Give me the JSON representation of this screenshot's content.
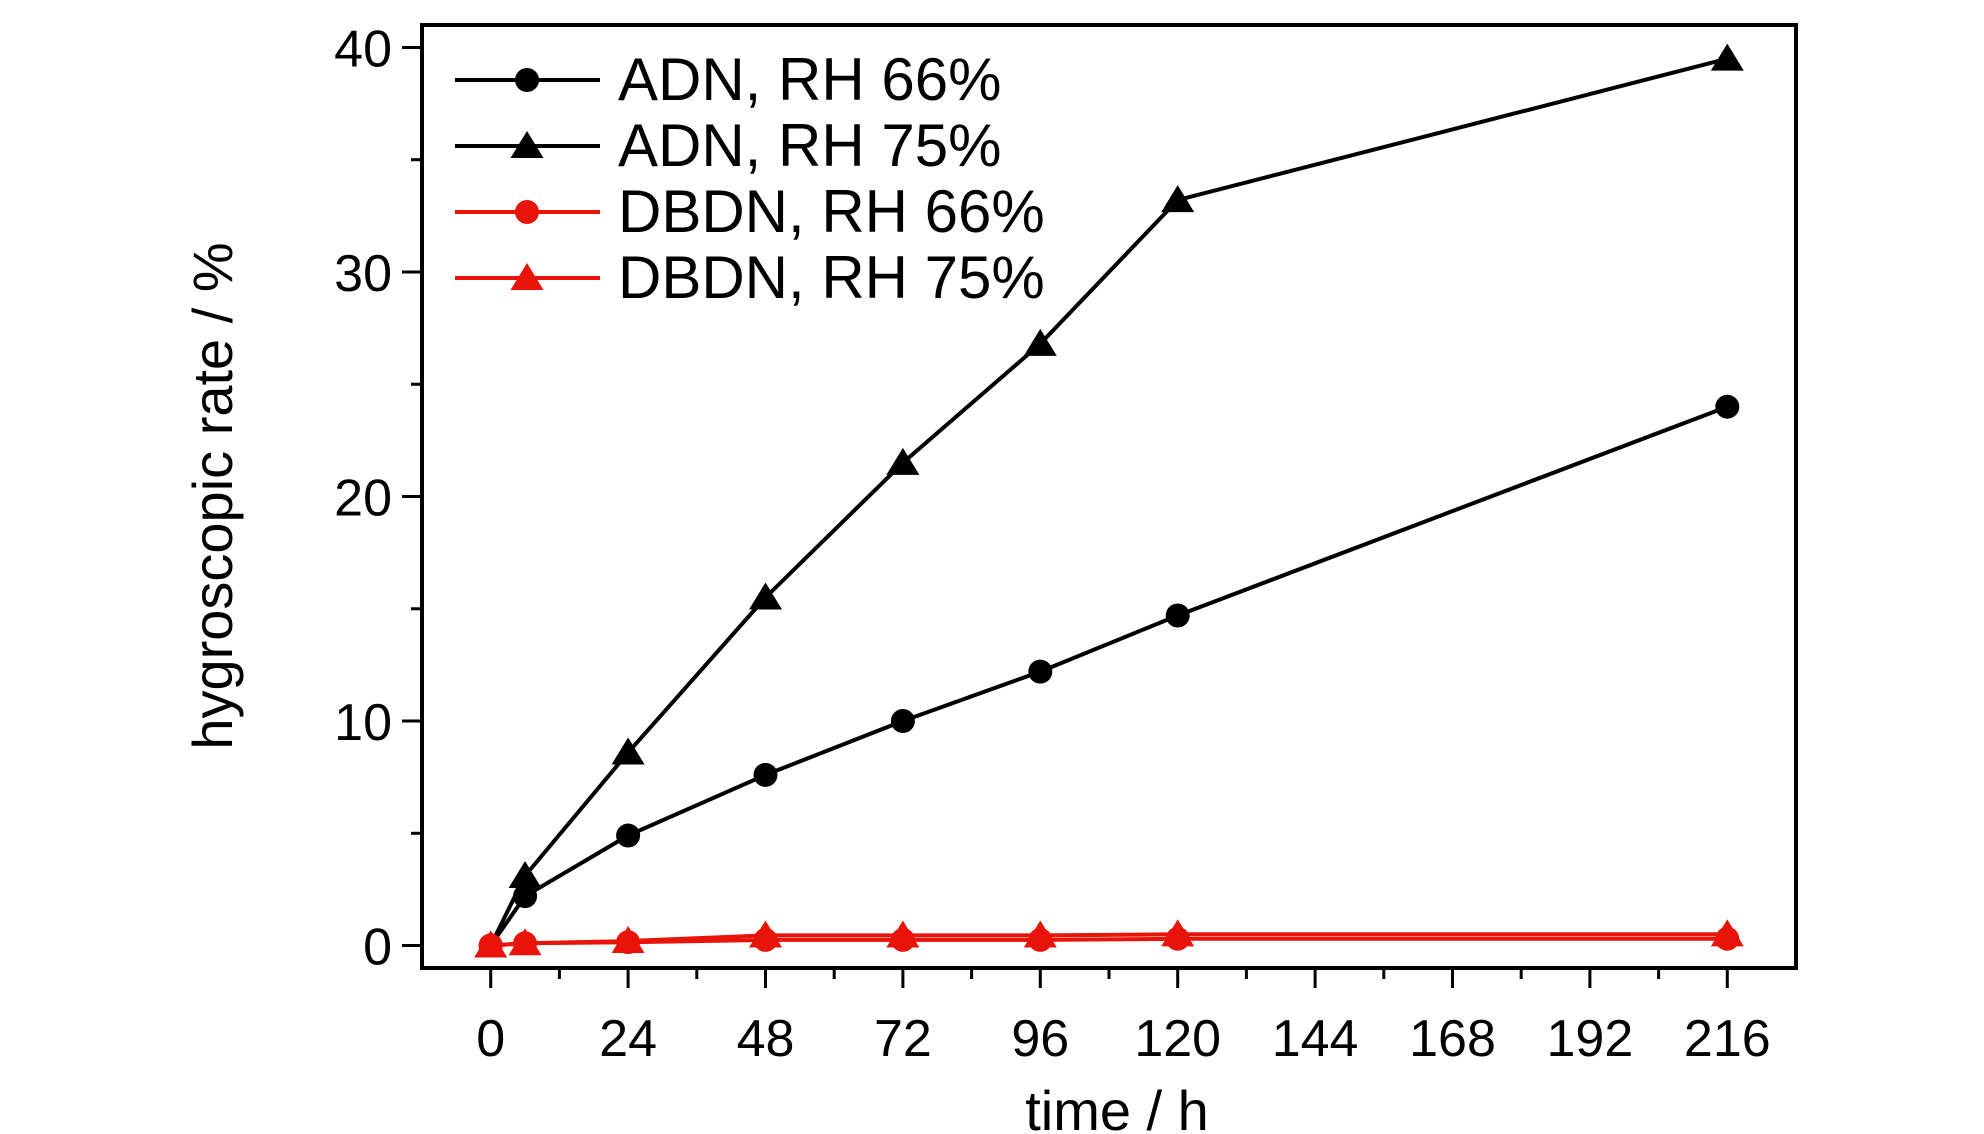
{
  "chart_data": {
    "type": "line",
    "title": "",
    "xlabel": "time / h",
    "ylabel": "hygroscopic rate / %",
    "xlim": [
      -12,
      228
    ],
    "ylim": [
      -1,
      41
    ],
    "xticks": [
      0,
      24,
      48,
      72,
      96,
      120,
      144,
      168,
      192,
      216
    ],
    "xtick_labels": [
      "0",
      "24",
      "48",
      "72",
      "96",
      "120",
      "144",
      "168",
      "192",
      "216"
    ],
    "yticks": [
      0,
      10,
      20,
      30,
      40
    ],
    "ytick_labels": [
      "0",
      "10",
      "20",
      "30",
      "40"
    ],
    "grid": false,
    "legend_position": "top-left",
    "series": [
      {
        "name": "ADN, RH 66%",
        "color": "#000000",
        "marker": "circle",
        "x": [
          0,
          6,
          24,
          48,
          72,
          96,
          120,
          216
        ],
        "y": [
          0,
          2.2,
          4.9,
          7.6,
          10.0,
          12.2,
          14.7,
          24.0
        ]
      },
      {
        "name": "ADN, RH 75%",
        "color": "#000000",
        "marker": "triangle",
        "x": [
          0,
          6,
          24,
          48,
          72,
          96,
          120,
          216
        ],
        "y": [
          0,
          3.1,
          8.6,
          15.5,
          21.5,
          26.8,
          33.2,
          39.5
        ]
      },
      {
        "name": "DBDN, RH 66%",
        "color": "#e8140a",
        "marker": "circle",
        "x": [
          0,
          6,
          24,
          48,
          72,
          96,
          120,
          216
        ],
        "y": [
          0,
          0.1,
          0.15,
          0.25,
          0.25,
          0.25,
          0.3,
          0.3
        ]
      },
      {
        "name": "DBDN, RH 75%",
        "color": "#e8140a",
        "marker": "triangle",
        "x": [
          0,
          6,
          24,
          48,
          72,
          96,
          120,
          216
        ],
        "y": [
          0,
          0.1,
          0.2,
          0.45,
          0.45,
          0.45,
          0.5,
          0.5
        ]
      }
    ]
  }
}
